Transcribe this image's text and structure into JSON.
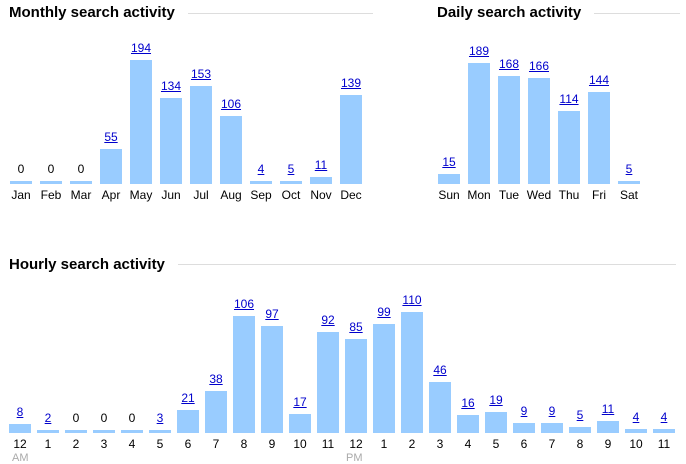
{
  "bar_color": "#99ccff",
  "link_color": "#0000cc",
  "charts": [
    {
      "id": "monthly",
      "title": "Monthly search activity",
      "categories": [
        "Jan",
        "Feb",
        "Mar",
        "Apr",
        "May",
        "Jun",
        "Jul",
        "Aug",
        "Sep",
        "Oct",
        "Nov",
        "Dec"
      ],
      "values": [
        0,
        0,
        0,
        55,
        194,
        134,
        153,
        106,
        4,
        5,
        11,
        139
      ]
    },
    {
      "id": "daily",
      "title": "Daily search activity",
      "categories": [
        "Sun",
        "Mon",
        "Tue",
        "Wed",
        "Thu",
        "Fri",
        "Sat"
      ],
      "values": [
        15,
        189,
        168,
        166,
        114,
        144,
        5
      ]
    },
    {
      "id": "hourly",
      "title": "Hourly search activity",
      "categories": [
        "12",
        "1",
        "2",
        "3",
        "4",
        "5",
        "6",
        "7",
        "8",
        "9",
        "10",
        "11",
        "12",
        "1",
        "2",
        "3",
        "4",
        "5",
        "6",
        "7",
        "8",
        "9",
        "10",
        "11"
      ],
      "values": [
        8,
        2,
        0,
        0,
        0,
        3,
        21,
        38,
        106,
        97,
        17,
        92,
        85,
        99,
        110,
        46,
        16,
        19,
        9,
        9,
        5,
        11,
        4,
        4
      ],
      "am_label": "AM",
      "pm_label": "PM"
    }
  ]
}
